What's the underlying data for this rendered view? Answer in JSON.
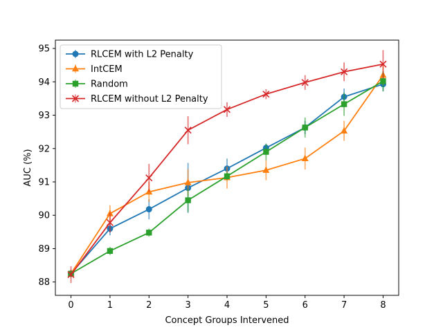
{
  "chart_data": {
    "type": "line",
    "title": "",
    "xlabel": "Concept Groups Intervened",
    "ylabel": "AUC (%)",
    "xlim": [
      -0.4,
      8.4
    ],
    "ylim": [
      87.6,
      95.25
    ],
    "xticks": [
      0,
      1,
      2,
      3,
      4,
      5,
      6,
      7,
      8
    ],
    "yticks": [
      88,
      89,
      90,
      91,
      92,
      93,
      94,
      95
    ],
    "grid": false,
    "legend_position": "top-left",
    "x": [
      0,
      1,
      2,
      3,
      4,
      5,
      6,
      7,
      8
    ],
    "series": [
      {
        "name": "RLCEM with L2 Penalty",
        "color": "#1f77b4",
        "marker": "circle",
        "values": [
          88.25,
          89.6,
          90.18,
          90.82,
          91.4,
          92.02,
          92.63,
          93.55,
          93.93
        ],
        "errors": [
          0.1,
          0.2,
          0.3,
          0.75,
          0.3,
          0.12,
          0.2,
          0.25,
          0.22
        ]
      },
      {
        "name": "IntCEM",
        "color": "#ff7f0e",
        "marker": "triangle",
        "values": [
          88.25,
          90.05,
          90.7,
          90.98,
          91.13,
          91.35,
          91.7,
          92.53,
          94.2
        ],
        "errors": [
          0.12,
          0.25,
          0.3,
          0.4,
          0.33,
          0.3,
          0.33,
          0.3,
          0.3
        ]
      },
      {
        "name": "Random",
        "color": "#2ca02c",
        "marker": "square",
        "values": [
          88.25,
          88.93,
          89.48,
          90.45,
          91.17,
          91.9,
          92.63,
          93.33,
          94.02
        ],
        "errors": [
          0.1,
          0.12,
          0.12,
          0.35,
          0.12,
          0.25,
          0.3,
          0.35,
          0.3
        ]
      },
      {
        "name": "RLCEM without L2 Penalty",
        "color": "#d62728",
        "marker": "x",
        "values": [
          88.22,
          89.78,
          91.12,
          92.55,
          93.17,
          93.63,
          93.98,
          94.3,
          94.53
        ],
        "errors": [
          0.25,
          0.3,
          0.42,
          0.42,
          0.22,
          0.15,
          0.22,
          0.28,
          0.42
        ]
      }
    ]
  }
}
